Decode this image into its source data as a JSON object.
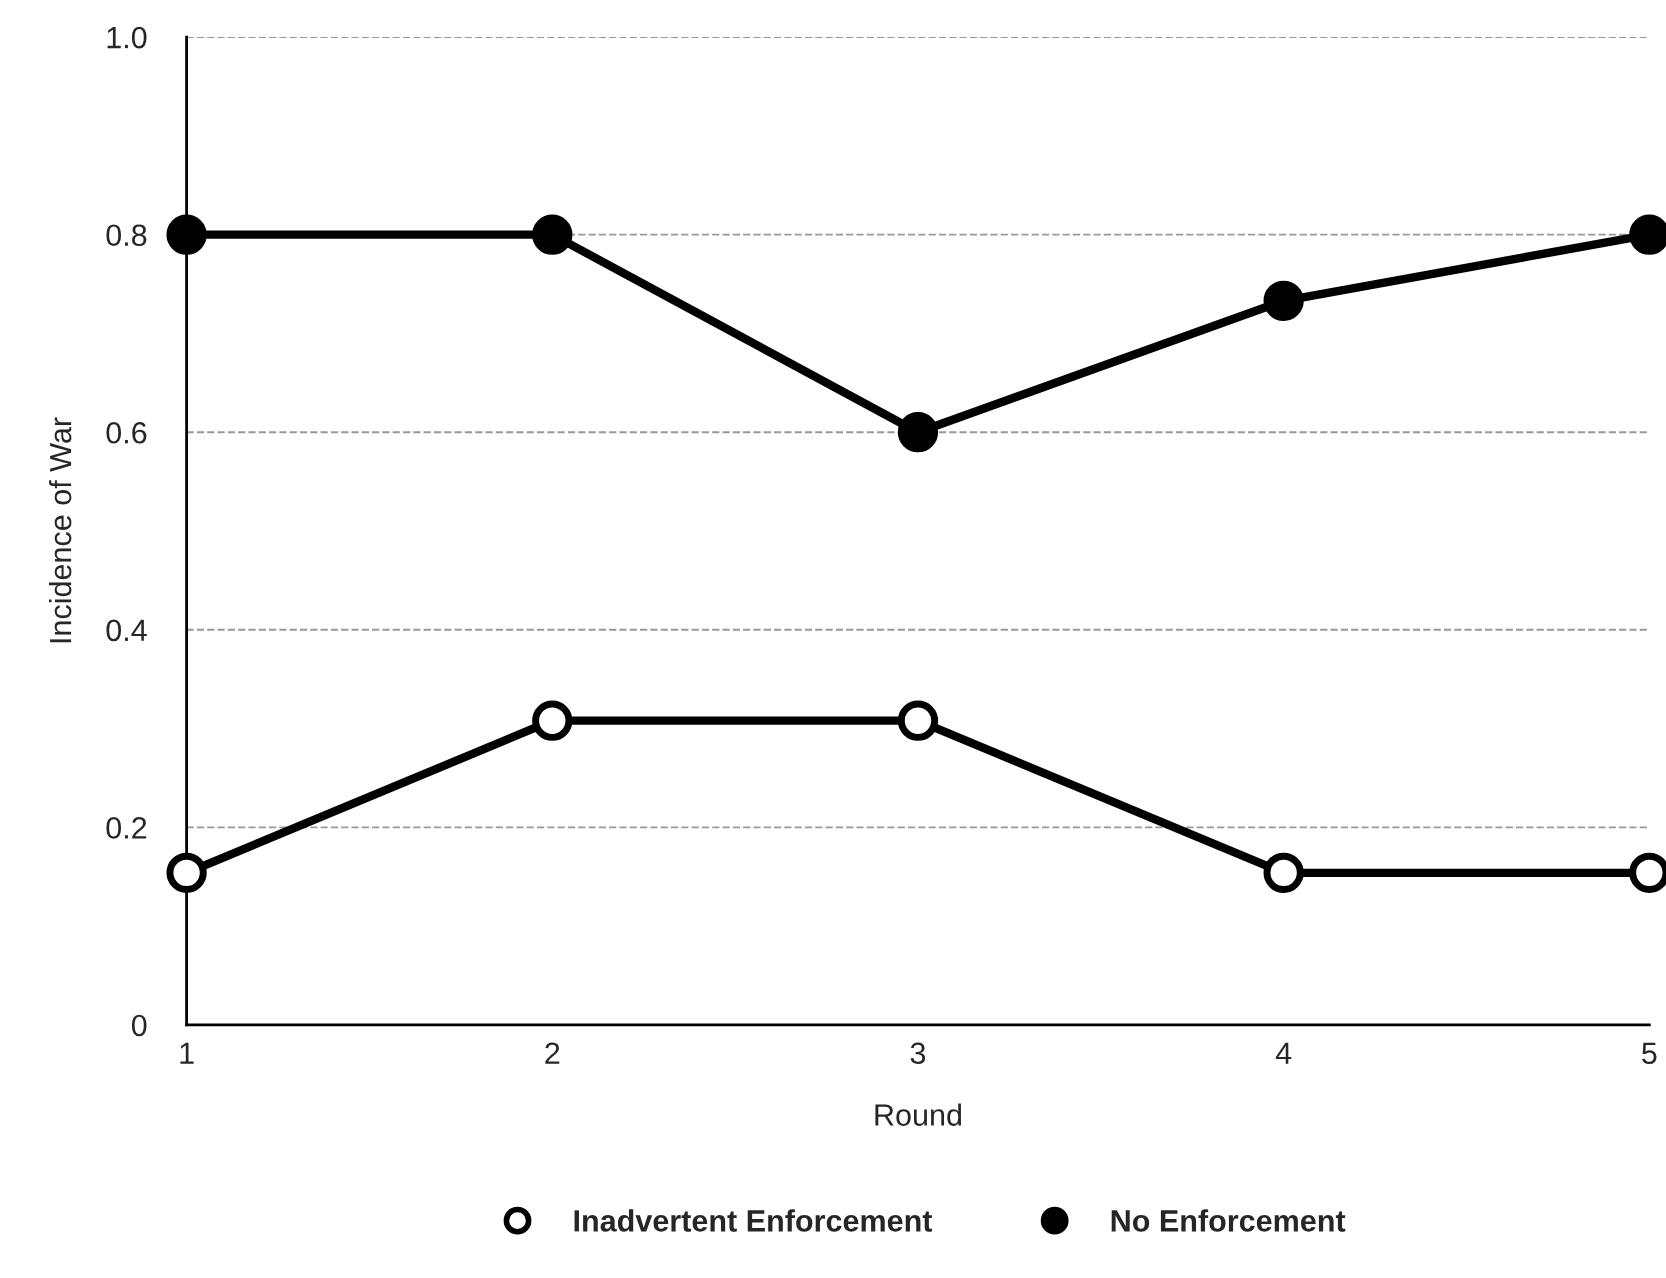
{
  "chart_data": {
    "type": "line",
    "xlabel": "Round",
    "ylabel": "Incidence of War",
    "x": [
      1,
      2,
      3,
      4,
      5
    ],
    "series": [
      {
        "name": "Inadvertent Enforcement",
        "color": "#ffffff",
        "values": [
          0.154,
          0.308,
          0.308,
          0.154,
          0.154
        ],
        "marker": "circle"
      },
      {
        "name": "No Enforcement",
        "color": "#000000",
        "values": [
          0.8,
          0.8,
          0.6,
          0.733,
          0.8
        ],
        "marker": "circle"
      }
    ],
    "xlim": [
      1,
      5
    ],
    "xticks": [
      1,
      2,
      3,
      4,
      5
    ],
    "ylim": [
      0,
      1
    ],
    "yticks": [
      0,
      0.2,
      0.4,
      0.6,
      0.8,
      {
        "value": 1,
        "label": "1.0"
      }
    ],
    "grid": "y",
    "legend": "bottom",
    "line_style": "solid"
  }
}
